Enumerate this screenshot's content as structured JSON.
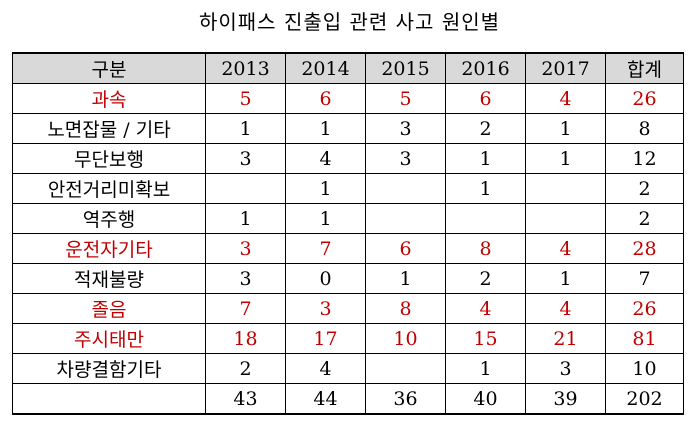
{
  "title": "하이패스 진출입 관련 사고 원인별",
  "header": [
    "구분",
    "2013",
    "2014",
    "2015",
    "2016",
    "2017",
    "합계"
  ],
  "rows": [
    {
      "label": "과속",
      "values": [
        "5",
        "6",
        "5",
        "6",
        "4",
        "26"
      ],
      "highlight": true
    },
    {
      "label": "노면잡물 / 기타",
      "values": [
        "1",
        "1",
        "3",
        "2",
        "1",
        "8"
      ],
      "highlight": false
    },
    {
      "label": "무단보행",
      "values": [
        "3",
        "4",
        "3",
        "1",
        "1",
        "12"
      ],
      "highlight": false
    },
    {
      "label": "안전거리미확보",
      "values": [
        "",
        "1",
        "",
        "1",
        "",
        "2"
      ],
      "highlight": false
    },
    {
      "label": "역주행",
      "values": [
        "1",
        "1",
        "",
        "",
        "",
        "2"
      ],
      "highlight": false
    },
    {
      "label": "운전자기타",
      "values": [
        "3",
        "7",
        "6",
        "8",
        "4",
        "28"
      ],
      "highlight": true
    },
    {
      "label": "적재불량",
      "values": [
        "3",
        "0",
        "1",
        "2",
        "1",
        "7"
      ],
      "highlight": false
    },
    {
      "label": "졸음",
      "values": [
        "7",
        "3",
        "8",
        "4",
        "4",
        "26"
      ],
      "highlight": true
    },
    {
      "label": "주시태만",
      "values": [
        "18",
        "17",
        "10",
        "15",
        "21",
        "81"
      ],
      "highlight": true
    },
    {
      "label": "차량결함기타",
      "values": [
        "2",
        "4",
        "",
        "1",
        "3",
        "10"
      ],
      "highlight": false
    },
    {
      "label": "",
      "values": [
        "43",
        "44",
        "36",
        "40",
        "39",
        "202"
      ],
      "highlight": false
    }
  ],
  "colors": {
    "highlight": "#c00000",
    "header_bg": "#d9d9d9"
  }
}
